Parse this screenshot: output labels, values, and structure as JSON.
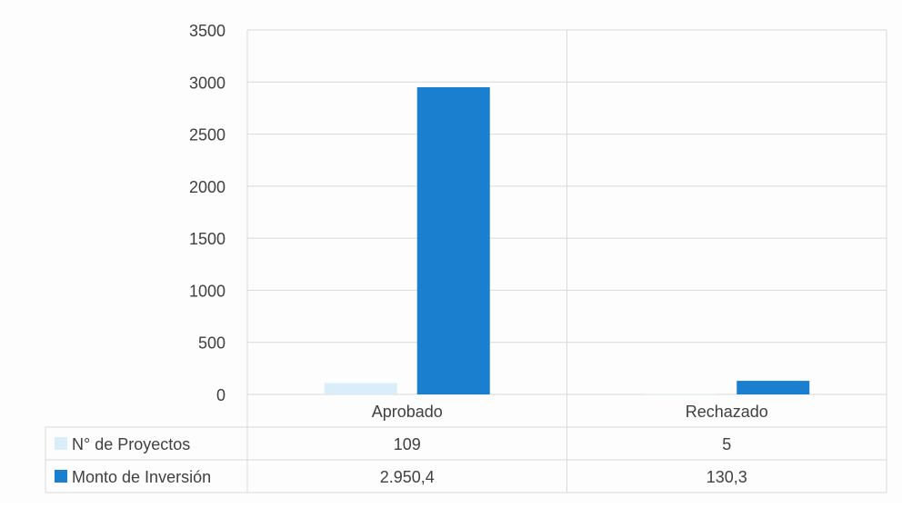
{
  "chart_data": {
    "type": "bar",
    "title": "",
    "xlabel": "",
    "ylabel": "",
    "ylim": [
      0,
      3500
    ],
    "yticks": [
      0,
      500,
      1000,
      1500,
      2000,
      2500,
      3000,
      3500
    ],
    "grid": true,
    "legend_placement": "table-left",
    "categories": [
      "Aprobado",
      "Rechazado"
    ],
    "series": [
      {
        "name": "N° de Proyectos",
        "values": [
          109,
          5
        ],
        "labels": [
          "109",
          "5"
        ],
        "color": "#d9eef9"
      },
      {
        "name": "Monto de Inversión",
        "values": [
          2950.4,
          130.3
        ],
        "labels": [
          "2.950,4",
          "130,3"
        ],
        "color": "#1a7fcf"
      }
    ],
    "data_table": true
  }
}
